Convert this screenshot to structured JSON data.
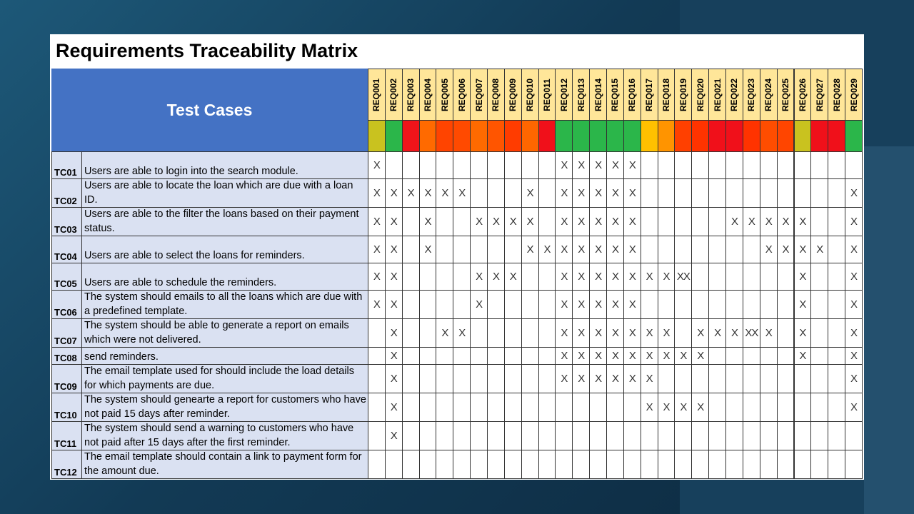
{
  "header": {
    "title": "Requirements Traceability Matrix",
    "test_cases_label": "Test Cases"
  },
  "requirements": [
    {
      "id": "REQ001",
      "color": "#c9c21f"
    },
    {
      "id": "REQ002",
      "color": "#2bb64a"
    },
    {
      "id": "REQ003",
      "color": "#f0141a"
    },
    {
      "id": "REQ004",
      "color": "#ff6a00"
    },
    {
      "id": "REQ005",
      "color": "#ff4400"
    },
    {
      "id": "REQ006",
      "color": "#ff4a00"
    },
    {
      "id": "REQ007",
      "color": "#ff6a00"
    },
    {
      "id": "REQ008",
      "color": "#ff5500"
    },
    {
      "id": "REQ009",
      "color": "#ff3c00"
    },
    {
      "id": "REQ010",
      "color": "#ff6600"
    },
    {
      "id": "REQ011",
      "color": "#f0101a"
    },
    {
      "id": "REQ012",
      "color": "#2bb64a"
    },
    {
      "id": "REQ013",
      "color": "#2bb64a"
    },
    {
      "id": "REQ014",
      "color": "#2bb64a"
    },
    {
      "id": "REQ015",
      "color": "#2bb64a"
    },
    {
      "id": "REQ016",
      "color": "#2bb64a"
    },
    {
      "id": "REQ017",
      "color": "#ffc000"
    },
    {
      "id": "REQ018",
      "color": "#ff9400"
    },
    {
      "id": "REQ019",
      "color": "#ff4000"
    },
    {
      "id": "REQ020",
      "color": "#ff3300"
    },
    {
      "id": "REQ021",
      "color": "#f0101a"
    },
    {
      "id": "REQ022",
      "color": "#f0101a"
    },
    {
      "id": "REQ023",
      "color": "#ff3300"
    },
    {
      "id": "REQ024",
      "color": "#ff4d00"
    },
    {
      "id": "REQ025",
      "color": "#ff4500"
    },
    {
      "id": "REQ026",
      "color": "#c9c21f"
    },
    {
      "id": "REQ027",
      "color": "#f0101a"
    },
    {
      "id": "REQ028",
      "color": "#f0101a"
    },
    {
      "id": "REQ029",
      "color": "#2bb64a"
    }
  ],
  "rows": [
    {
      "id": "TC01",
      "description": "Users are able to login into the search module.",
      "marks": [
        "X",
        null,
        null,
        null,
        null,
        null,
        null,
        null,
        null,
        null,
        null,
        "X",
        "X",
        "X",
        "X",
        "X",
        null,
        null,
        null,
        null,
        null,
        null,
        null,
        null,
        null,
        null,
        null,
        null,
        null
      ]
    },
    {
      "id": "TC02",
      "description": "Users are able to locate the loan which are due with a loan ID.",
      "marks": [
        "X",
        "X",
        "X",
        "X",
        "X",
        "X",
        null,
        null,
        null,
        "X",
        null,
        "X",
        "X",
        "X",
        "X",
        "X",
        null,
        null,
        null,
        null,
        null,
        null,
        null,
        null,
        null,
        null,
        null,
        null,
        "X"
      ]
    },
    {
      "id": "TC03",
      "description": "Users are able to the filter the loans based on their payment status.",
      "marks": [
        "X",
        "X",
        null,
        "X",
        null,
        null,
        "X",
        "X",
        "X",
        "X",
        null,
        "X",
        "X",
        "X",
        "X",
        "X",
        null,
        null,
        null,
        null,
        null,
        "X",
        "X",
        "X",
        "X",
        "X",
        null,
        null,
        "X"
      ]
    },
    {
      "id": "TC04",
      "description": "Users are able to select the loans for reminders.",
      "marks": [
        "X",
        "X",
        null,
        "X",
        null,
        null,
        null,
        null,
        null,
        "X",
        "X",
        "X",
        "X",
        "X",
        "X",
        "X",
        null,
        null,
        null,
        null,
        null,
        null,
        null,
        "X",
        "X",
        "X",
        "X",
        null,
        "X"
      ]
    },
    {
      "id": "TC05",
      "description": "Users are able to schedule the reminders.",
      "marks": [
        "X",
        "X",
        null,
        null,
        null,
        null,
        "X",
        "X",
        "X",
        null,
        null,
        "X",
        "X",
        "X",
        "X",
        "X",
        "X",
        "X",
        "XX",
        null,
        null,
        null,
        null,
        null,
        null,
        "X",
        null,
        null,
        "X"
      ]
    },
    {
      "id": "TC06",
      "description": "The system should emails to all the loans which are due with a predefined template.",
      "marks": [
        "X",
        "X",
        null,
        null,
        null,
        null,
        "X",
        null,
        null,
        null,
        null,
        "X",
        "X",
        "X",
        "X",
        "X",
        null,
        null,
        null,
        null,
        null,
        null,
        null,
        null,
        null,
        "X",
        null,
        null,
        "X"
      ]
    },
    {
      "id": "TC07",
      "description": "The system should be able to generate a report on emails which were not delivered.",
      "marks": [
        null,
        "X",
        null,
        null,
        "X",
        "X",
        null,
        null,
        null,
        null,
        null,
        "X",
        "X",
        "X",
        "X",
        "X",
        "X",
        "X",
        null,
        "X",
        "X",
        "X",
        "XX",
        "X",
        null,
        "X",
        null,
        null,
        "X"
      ]
    },
    {
      "id": "TC08",
      "description": "send reminders.",
      "marks": [
        null,
        "X",
        null,
        null,
        null,
        null,
        null,
        null,
        null,
        null,
        null,
        "X",
        "X",
        "X",
        "X",
        "X",
        "X",
        "X",
        "X",
        "X",
        null,
        null,
        null,
        null,
        null,
        "X",
        null,
        null,
        "X"
      ]
    },
    {
      "id": "TC09",
      "description": "The email template used for should include the load details for which payments are due.",
      "marks": [
        null,
        "X",
        null,
        null,
        null,
        null,
        null,
        null,
        null,
        null,
        null,
        "X",
        "X",
        "X",
        "X",
        "X",
        "X",
        null,
        null,
        null,
        null,
        null,
        null,
        null,
        null,
        null,
        null,
        null,
        "X"
      ]
    },
    {
      "id": "TC10",
      "description": "The system should genearte a report for customers who have not paid 15 days after reminder.",
      "marks": [
        null,
        "X",
        null,
        null,
        null,
        null,
        null,
        null,
        null,
        null,
        null,
        null,
        null,
        null,
        null,
        null,
        "X",
        "X",
        "X",
        "X",
        null,
        null,
        null,
        null,
        null,
        null,
        null,
        null,
        "X"
      ]
    },
    {
      "id": "TC11",
      "description": "The system should send a warning to customers who have not paid after 15 days after the first reminder.",
      "marks": [
        null,
        "X",
        null,
        null,
        null,
        null,
        null,
        null,
        null,
        null,
        null,
        null,
        null,
        null,
        null,
        null,
        null,
        null,
        null,
        null,
        null,
        null,
        null,
        null,
        null,
        null,
        null,
        null,
        null
      ]
    },
    {
      "id": "TC12",
      "description": "The email template should contain a link to payment form for the amount due.",
      "marks": [
        null,
        null,
        null,
        null,
        null,
        null,
        null,
        null,
        null,
        null,
        null,
        null,
        null,
        null,
        null,
        null,
        null,
        null,
        null,
        null,
        null,
        null,
        null,
        null,
        null,
        null,
        null,
        null,
        null
      ]
    }
  ]
}
